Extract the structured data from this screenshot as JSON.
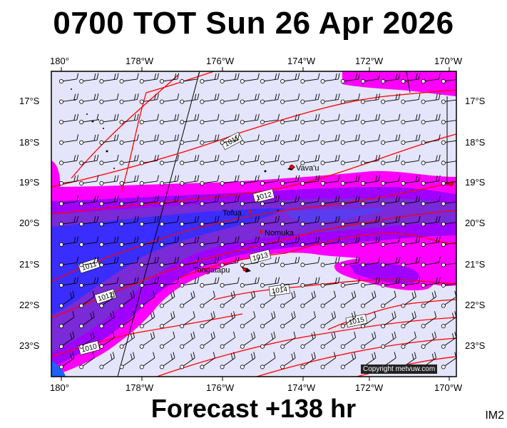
{
  "header": {
    "title": "0700 TOT Sun 26 Apr 2026"
  },
  "footer": {
    "forecast": "Forecast +138 hr",
    "tag": "IM2"
  },
  "map": {
    "lon_labels": [
      "180°",
      "178°W",
      "176°W",
      "174°W",
      "172°W",
      "170°W"
    ],
    "lat_labels": [
      "17°S",
      "18°S",
      "19°S",
      "20°S",
      "21°S",
      "22°S",
      "23°S"
    ],
    "places": {
      "vavau": "Vava'u",
      "tofua": "Tofua",
      "nomuka": "Nomuka",
      "tongatapu": "Tongatapu"
    },
    "isobars": [
      "1011",
      "1012",
      "1013",
      "1014",
      "1015",
      "1011",
      "1012",
      "1010"
    ],
    "copyright": "Copyright metvuw.com",
    "colors": {
      "pale": "#e4e4fa",
      "magenta": "#ff00ff",
      "violet": "#a000ff",
      "purple": "#7a2ad6",
      "blue": "#3a2dff",
      "isobar": "#ff0000"
    }
  }
}
